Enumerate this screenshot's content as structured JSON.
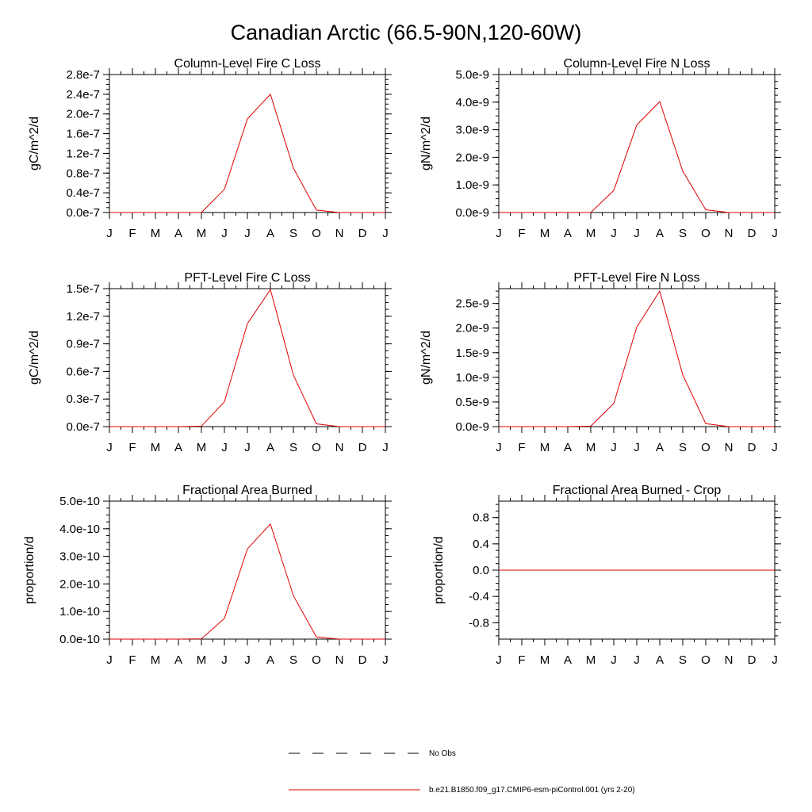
{
  "figure_title": "Canadian Arctic (66.5-90N,120-60W)",
  "legend": {
    "entries": [
      {
        "label": "No Obs",
        "style": "dashed",
        "color": "#000000"
      },
      {
        "label": "b.e21.B1850.f09_g17.CMIP6-esm-piControl.001 (yrs 2-20)",
        "style": "solid",
        "color": "#e00000"
      }
    ]
  },
  "chart_data": [
    {
      "type": "line",
      "title": "Column-Level Fire C Loss",
      "ylabel": "gC/m^2/d",
      "xlabel": "",
      "categories": [
        "J",
        "F",
        "M",
        "A",
        "M",
        "J",
        "J",
        "A",
        "S",
        "O",
        "N",
        "D",
        "J"
      ],
      "series": [
        {
          "color": "#e00000",
          "values": [
            0,
            0,
            0,
            0,
            0,
            4.7e-08,
            1.9e-07,
            2.4e-07,
            9e-08,
            5e-09,
            0,
            0,
            0
          ]
        }
      ],
      "ylim": [
        0,
        2.8e-07
      ],
      "yticks": [
        0,
        4e-08,
        8e-08,
        1.2e-07,
        1.6e-07,
        2e-07,
        2.4e-07,
        2.8e-07
      ],
      "ytick_labels": [
        "0.0e-7",
        "0.4e-7",
        "0.8e-7",
        "1.2e-7",
        "1.6e-7",
        "2.0e-7",
        "2.4e-7",
        "2.8e-7"
      ],
      "grid": false
    },
    {
      "type": "line",
      "title": "Column-Level Fire N Loss",
      "ylabel": "gN/m^2/d",
      "xlabel": "",
      "categories": [
        "J",
        "F",
        "M",
        "A",
        "M",
        "J",
        "J",
        "A",
        "S",
        "O",
        "N",
        "D",
        "J"
      ],
      "series": [
        {
          "color": "#e00000",
          "values": [
            0,
            0,
            0,
            0,
            0,
            8e-10,
            3.17e-09,
            4.02e-09,
            1.5e-09,
            1e-10,
            0,
            0,
            0
          ]
        }
      ],
      "ylim": [
        0,
        5e-09
      ],
      "yticks": [
        0,
        1e-09,
        2e-09,
        3e-09,
        4e-09,
        5e-09
      ],
      "ytick_labels": [
        "0.0e-9",
        "1.0e-9",
        "2.0e-9",
        "3.0e-9",
        "4.0e-9",
        "5.0e-9"
      ],
      "grid": false
    },
    {
      "type": "line",
      "title": "PFT-Level Fire C Loss",
      "ylabel": "gC/m^2/d",
      "xlabel": "",
      "categories": [
        "J",
        "F",
        "M",
        "A",
        "M",
        "J",
        "J",
        "A",
        "S",
        "O",
        "N",
        "D",
        "J"
      ],
      "series": [
        {
          "color": "#e00000",
          "values": [
            0,
            0,
            0,
            0,
            5e-10,
            2.7e-08,
            1.12e-07,
            1.49e-07,
            5.6e-08,
            3e-09,
            0,
            0,
            0
          ]
        }
      ],
      "ylim": [
        0,
        1.5e-07
      ],
      "yticks": [
        0,
        3e-08,
        6e-08,
        9e-08,
        1.2e-07,
        1.5e-07
      ],
      "ytick_labels": [
        "0.0e-7",
        "0.3e-7",
        "0.6e-7",
        "0.9e-7",
        "1.2e-7",
        "1.5e-7"
      ],
      "grid": false
    },
    {
      "type": "line",
      "title": "PFT-Level Fire N Loss",
      "ylabel": "gN/m^2/d",
      "xlabel": "",
      "categories": [
        "J",
        "F",
        "M",
        "A",
        "M",
        "J",
        "J",
        "A",
        "S",
        "O",
        "N",
        "D",
        "J"
      ],
      "series": [
        {
          "color": "#e00000",
          "values": [
            0,
            0,
            0,
            0,
            1e-11,
            4.7e-10,
            2.02e-09,
            2.75e-09,
            1.05e-09,
            6e-11,
            0,
            0,
            0
          ]
        }
      ],
      "ylim": [
        0,
        2.8e-09
      ],
      "yticks": [
        0,
        5e-10,
        1e-09,
        1.5e-09,
        2e-09,
        2.5e-09
      ],
      "ytick_labels": [
        "0.0e-9",
        "0.5e-9",
        "1.0e-9",
        "1.5e-9",
        "2.0e-9",
        "2.5e-9"
      ],
      "grid": false
    },
    {
      "type": "line",
      "title": "Fractional Area Burned",
      "ylabel": "proportion/d",
      "xlabel": "",
      "categories": [
        "J",
        "F",
        "M",
        "A",
        "M",
        "J",
        "J",
        "A",
        "S",
        "O",
        "N",
        "D",
        "J"
      ],
      "series": [
        {
          "color": "#e00000",
          "values": [
            0,
            0,
            0,
            0,
            1e-12,
            7.5e-11,
            3.27e-10,
            4.17e-10,
            1.57e-10,
            8e-12,
            0,
            0,
            0
          ]
        }
      ],
      "ylim": [
        0,
        5e-10
      ],
      "yticks": [
        0,
        1e-10,
        2e-10,
        3e-10,
        4e-10,
        5e-10
      ],
      "ytick_labels": [
        "0.0e-10",
        "1.0e-10",
        "2.0e-10",
        "3.0e-10",
        "4.0e-10",
        "5.0e-10"
      ],
      "grid": false
    },
    {
      "type": "line",
      "title": "Fractional Area Burned - Crop",
      "ylabel": "proportion/d",
      "xlabel": "",
      "categories": [
        "J",
        "F",
        "M",
        "A",
        "M",
        "J",
        "J",
        "A",
        "S",
        "O",
        "N",
        "D",
        "J"
      ],
      "series": [
        {
          "color": "#e00000",
          "values": [
            0,
            0,
            0,
            0,
            0,
            0,
            0,
            0,
            0,
            0,
            0,
            0,
            0
          ]
        }
      ],
      "ylim": [
        -1.05,
        1.05
      ],
      "yticks": [
        -0.8,
        -0.4,
        0,
        0.4,
        0.8
      ],
      "ytick_labels": [
        "-0.8",
        "-0.4",
        "0.0",
        "0.4",
        "0.8"
      ],
      "grid": false
    }
  ]
}
